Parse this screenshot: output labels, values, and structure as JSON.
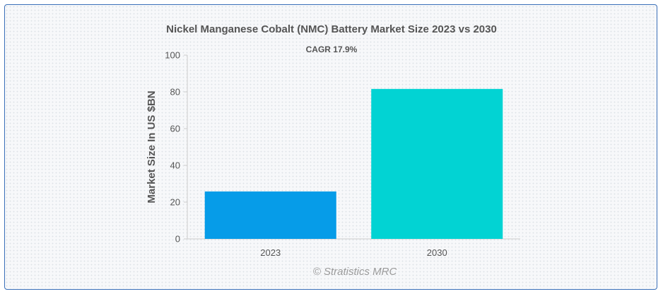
{
  "chart_data": {
    "type": "bar",
    "title": "Nickel Manganese Cobalt (NMC) Battery Market Size 2023 vs 2030",
    "subtitle": "CAGR 17.9%",
    "xlabel": "",
    "ylabel": "Market Size In US $BN",
    "categories": [
      "2023",
      "2030"
    ],
    "values": [
      25.8,
      81.6
    ],
    "colors": [
      "#069ce8",
      "#02d3d3"
    ],
    "ylim": [
      0,
      100
    ],
    "yticks": [
      "0",
      "20",
      "40",
      "60",
      "80",
      "100"
    ],
    "grid": false,
    "legend": "none"
  },
  "watermark": "© Stratistics MRC"
}
